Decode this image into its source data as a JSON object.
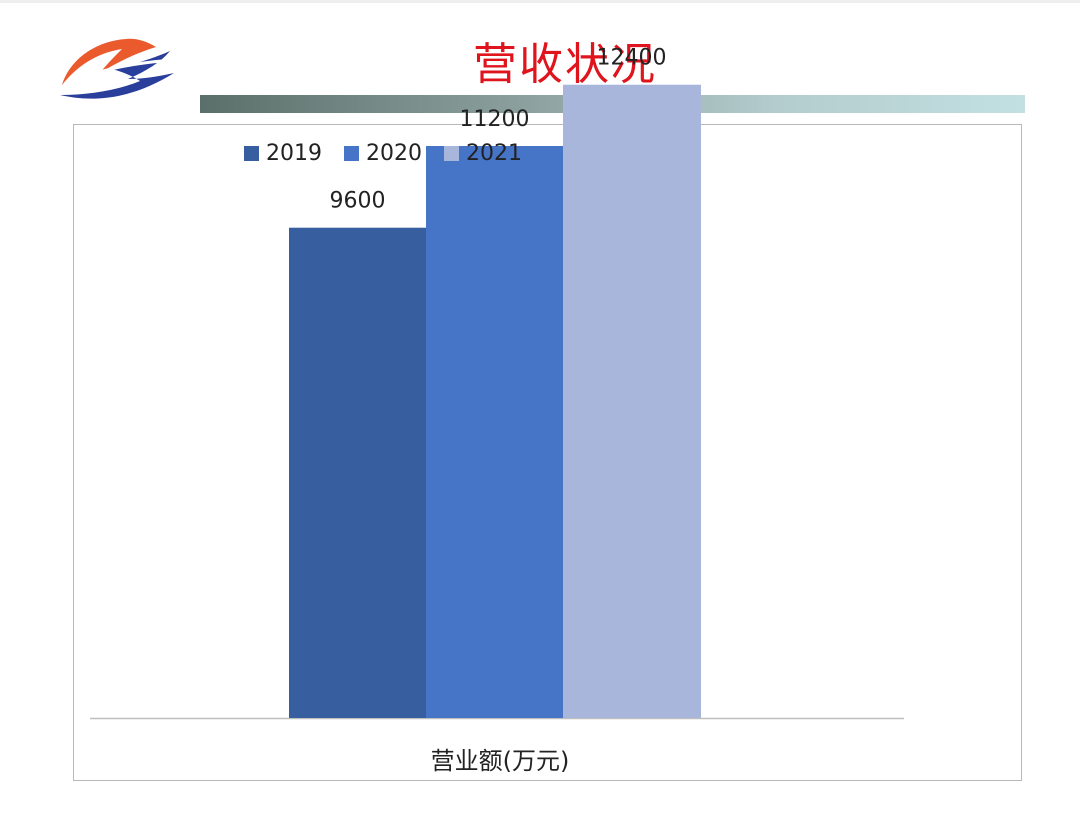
{
  "slide": {
    "title": "营收状况"
  },
  "colors": {
    "title": "#e0141c",
    "series_2019": "#375e9f",
    "series_2020": "#4674c7",
    "series_2021": "#a7b6da",
    "axis": "#bfbfbf"
  },
  "chart_data": {
    "type": "bar",
    "categories": [
      "营业额(万元)"
    ],
    "xlabel": "营业额(万元)",
    "ylabel": "",
    "ylim": [
      0,
      14000
    ],
    "grid": false,
    "legend_position": "top-left",
    "series": [
      {
        "name": "2019",
        "values": [
          9600
        ],
        "label": "9600",
        "color": "#375e9f"
      },
      {
        "name": "2020",
        "values": [
          11200
        ],
        "label": "11200",
        "color": "#4674c7"
      },
      {
        "name": "2021",
        "values": [
          12400
        ],
        "label": "12400",
        "color": "#a7b6da"
      }
    ]
  }
}
